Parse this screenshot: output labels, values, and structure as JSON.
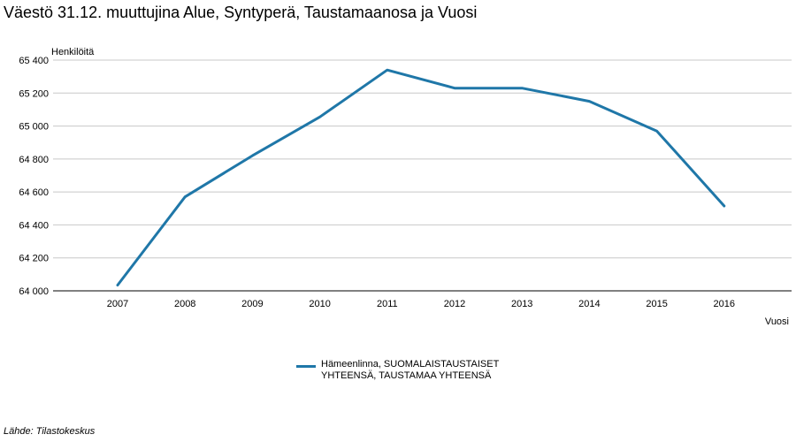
{
  "title": "Väestö 31.12. muuttujina Alue, Syntyperä, Taustamaanosa ja Vuosi",
  "source": "Lähde: Tilastokeskus",
  "chart_data": {
    "type": "line",
    "title": "Väestö 31.12. muuttujina Alue, Syntyperä, Taustamaanosa ja Vuosi",
    "xlabel": "Vuosi",
    "ylabel": "Henkilöitä",
    "categories": [
      "2007",
      "2008",
      "2009",
      "2010",
      "2011",
      "2012",
      "2013",
      "2014",
      "2015",
      "2016"
    ],
    "ylim": [
      64000,
      65400
    ],
    "yticks": [
      64000,
      64200,
      64400,
      64600,
      64800,
      65000,
      65200,
      65400
    ],
    "ytick_labels": [
      "64 000",
      "64 200",
      "64 400",
      "64 600",
      "64 800",
      "65 000",
      "65 200",
      "65 400"
    ],
    "grid": true,
    "legend_position": "bottom",
    "series": [
      {
        "name": "Hämeenlinna, SUOMALAISTAUSTAISET YHTEENSÄ, TAUSTAMAA YHTEENSÄ",
        "color": "#1f77a8",
        "values": [
          64035,
          64570,
          64820,
          65055,
          65340,
          65230,
          65230,
          65150,
          64970,
          64515
        ]
      }
    ]
  }
}
